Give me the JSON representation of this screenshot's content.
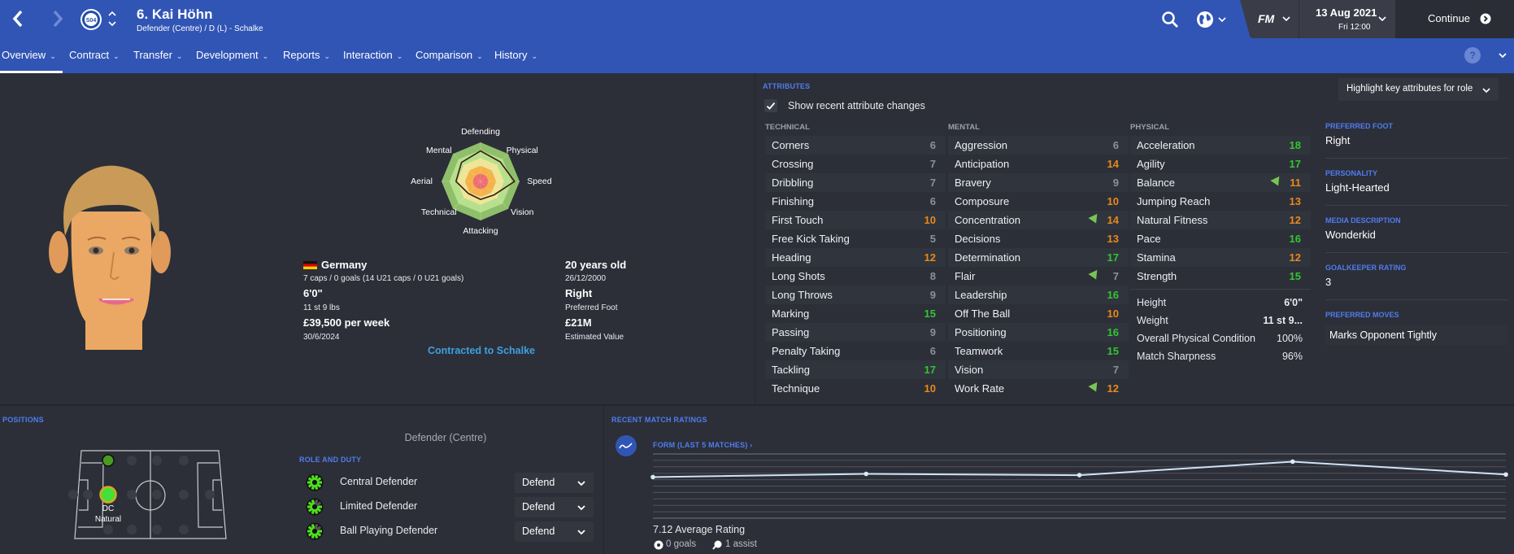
{
  "header": {
    "title": "6. Kai Höhn",
    "subtitle": "Defender (Centre) / D (L) - Schalke",
    "club_badge_text": "S04",
    "brand": "FM",
    "date": "13 Aug 2021",
    "time": "Fri 12:00",
    "continue_label": "Continue",
    "icons": {
      "back": "chevron-left-icon",
      "forward": "chevron-right-icon",
      "search": "search-icon",
      "world": "globe-icon",
      "help": "help-icon"
    }
  },
  "nav": {
    "tabs": [
      {
        "label": "Overview",
        "active": true
      },
      {
        "label": "Contract"
      },
      {
        "label": "Transfer"
      },
      {
        "label": "Development"
      },
      {
        "label": "Reports"
      },
      {
        "label": "Interaction"
      },
      {
        "label": "Comparison"
      },
      {
        "label": "History"
      }
    ]
  },
  "profile": {
    "radar": {
      "labels": [
        "Defending",
        "Physical",
        "Speed",
        "Vision",
        "Attacking",
        "Technical",
        "Aerial",
        "Mental"
      ],
      "levels": [
        0.78,
        0.71,
        0.87,
        0.49,
        0.46,
        0.44,
        0.63,
        0.69
      ]
    },
    "nationality": "Germany",
    "caps": "7 caps / 0 goals (14 U21 caps / 0 U21 goals)",
    "height": "6'0\"",
    "weight": "11 st 9 lbs",
    "wage": "£39,500 per week",
    "contract_end": "30/6/2024",
    "age": "20 years old",
    "dob": "26/12/2000",
    "foot": "Right",
    "foot_label": "Preferred Foot",
    "value": "£21M",
    "value_label": "Estimated Value",
    "contract_status": "Contracted to Schalke"
  },
  "attributes": {
    "section_title": "ATTRIBUTES",
    "show_changes_label": "Show recent attribute changes",
    "show_changes_checked": true,
    "highlight_label": "Highlight key attributes for role",
    "columns": [
      {
        "title": "TECHNICAL",
        "items": [
          {
            "name": "Corners",
            "value": 6
          },
          {
            "name": "Crossing",
            "value": 7
          },
          {
            "name": "Dribbling",
            "value": 7
          },
          {
            "name": "Finishing",
            "value": 6
          },
          {
            "name": "First Touch",
            "value": 10
          },
          {
            "name": "Free Kick Taking",
            "value": 5
          },
          {
            "name": "Heading",
            "value": 12
          },
          {
            "name": "Long Shots",
            "value": 8
          },
          {
            "name": "Long Throws",
            "value": 9
          },
          {
            "name": "Marking",
            "value": 15
          },
          {
            "name": "Passing",
            "value": 9
          },
          {
            "name": "Penalty Taking",
            "value": 6
          },
          {
            "name": "Tackling",
            "value": 17
          },
          {
            "name": "Technique",
            "value": 10
          }
        ]
      },
      {
        "title": "MENTAL",
        "items": [
          {
            "name": "Aggression",
            "value": 6
          },
          {
            "name": "Anticipation",
            "value": 14
          },
          {
            "name": "Bravery",
            "value": 9
          },
          {
            "name": "Composure",
            "value": 10
          },
          {
            "name": "Concentration",
            "value": 14,
            "improved": true
          },
          {
            "name": "Decisions",
            "value": 13
          },
          {
            "name": "Determination",
            "value": 17
          },
          {
            "name": "Flair",
            "value": 7,
            "improved": true
          },
          {
            "name": "Leadership",
            "value": 16
          },
          {
            "name": "Off The Ball",
            "value": 10
          },
          {
            "name": "Positioning",
            "value": 16
          },
          {
            "name": "Teamwork",
            "value": 15
          },
          {
            "name": "Vision",
            "value": 7
          },
          {
            "name": "Work Rate",
            "value": 12,
            "improved": true
          }
        ]
      },
      {
        "title": "PHYSICAL",
        "items": [
          {
            "name": "Acceleration",
            "value": 18
          },
          {
            "name": "Agility",
            "value": 17
          },
          {
            "name": "Balance",
            "value": 11,
            "improved": true
          },
          {
            "name": "Jumping Reach",
            "value": 13
          },
          {
            "name": "Natural Fitness",
            "value": 12
          },
          {
            "name": "Pace",
            "value": 16
          },
          {
            "name": "Stamina",
            "value": 12
          },
          {
            "name": "Strength",
            "value": 15
          }
        ]
      }
    ],
    "physical_extra": [
      {
        "name": "Height",
        "value": "6'0\""
      },
      {
        "name": "Weight",
        "value": "11 st 9..."
      },
      {
        "name": "Overall Physical Condition",
        "value": "100%"
      },
      {
        "name": "Match Sharpness",
        "value": "96%"
      }
    ],
    "colors": {
      "low": "#8c9099",
      "mid": "#e8891c",
      "high": "#35c433",
      "improved": "#7ac453"
    }
  },
  "side_info": [
    {
      "label": "PREFERRED FOOT",
      "value": "Right"
    },
    {
      "label": "PERSONALITY",
      "value": "Light-Hearted"
    },
    {
      "label": "MEDIA DESCRIPTION",
      "value": "Wonderkid"
    },
    {
      "label": "GOALKEEPER RATING",
      "value": "3"
    },
    {
      "label": "PREFERRED MOVES",
      "value": "Marks Opponent Tightly"
    }
  ],
  "positions": {
    "section_title": "POSITIONS",
    "position_name": "Defender (Centre)",
    "pitch_label": "DC",
    "pitch_sublabel": "Natural",
    "role_title": "ROLE AND DUTY",
    "roles": [
      {
        "name": "Central Defender",
        "duty": "Defend",
        "suitability": 1.0
      },
      {
        "name": "Limited Defender",
        "duty": "Defend",
        "suitability": 0.8
      },
      {
        "name": "Ball Playing Defender",
        "duty": "Defend",
        "suitability": 0.8
      }
    ]
  },
  "ratings": {
    "section_title": "RECENT MATCH RATINGS",
    "form_label": "FORM (LAST 5 MATCHES) ›",
    "form_values": [
      6.4,
      6.9,
      6.7,
      8.8,
      6.8
    ],
    "form_ylim": [
      0,
      10
    ],
    "average": "7.12 Average Rating",
    "goals": "0 goals",
    "assists": "1 assist"
  },
  "colors": {
    "brand_blue": "#3155b5",
    "accent": "#4f7cf0",
    "link": "#3ea0e0",
    "background": "#2c2f38"
  }
}
